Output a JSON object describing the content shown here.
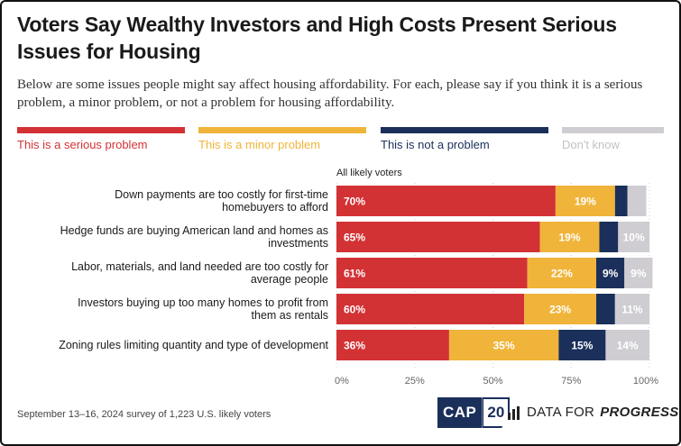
{
  "title": "Voters Say Wealthy Investors and High Costs Present Serious Issues for Housing",
  "subtitle": "Below are some issues people might say affect housing affordability. For each, please say if you think it is a serious problem, a minor problem, or not a problem for housing affordability.",
  "group_label": "All likely voters",
  "footnote": "September 13–16, 2024 survey of 1,223 U.S. likely voters",
  "logos": {
    "cap_text": "CAP",
    "cap_num": "20",
    "dfp_text_plain": "DATA FOR",
    "dfp_text_bold": "PROGRESS"
  },
  "colors": {
    "serious": "#d33235",
    "minor": "#f0b43a",
    "not": "#1b2f5b",
    "dont_know": "#cfcdd2",
    "text_dark": "#1a1a1a",
    "grid": "#cccccc"
  },
  "legend": [
    {
      "label": "This is a serious problem",
      "color": "#d33235",
      "text_color": "#d33235"
    },
    {
      "label": "This is a minor problem",
      "color": "#f0b43a",
      "text_color": "#f0b43a"
    },
    {
      "label": "This is not a problem",
      "color": "#1b2f5b",
      "text_color": "#1b2f5b"
    },
    {
      "label": "Don't know",
      "color": "#cfcdd2",
      "text_color": "#c3c1c6"
    }
  ],
  "chart_data": {
    "type": "bar",
    "orientation": "horizontal",
    "stacked": true,
    "categories": [
      [
        "Down payments are too costly for first-time",
        "homebuyers to afford"
      ],
      [
        "Hedge funds are buying American land and homes as",
        "investments"
      ],
      [
        "Labor, materials, and land needed are too costly for",
        "average people"
      ],
      [
        "Investors buying up too many homes to profit from",
        "them as rentals"
      ],
      [
        "Zoning rules limiting quantity and type of development"
      ]
    ],
    "series": [
      {
        "name": "This is a serious problem",
        "values": [
          70,
          65,
          61,
          60,
          36
        ],
        "labels": [
          "70%",
          "65%",
          "61%",
          "60%",
          "36%"
        ]
      },
      {
        "name": "This is a minor problem",
        "values": [
          19,
          19,
          22,
          23,
          35
        ],
        "labels": [
          "19%",
          "19%",
          "22%",
          "23%",
          "35%"
        ]
      },
      {
        "name": "This is not a problem",
        "values": [
          4,
          6,
          9,
          6,
          15
        ],
        "labels": [
          "",
          "",
          "9%",
          "",
          "15%"
        ]
      },
      {
        "name": "Don't know",
        "values": [
          6,
          10,
          9,
          11,
          14
        ],
        "labels": [
          "",
          "10%",
          "9%",
          "11%",
          "14%"
        ]
      }
    ],
    "xticks": [
      "0%",
      "25%",
      "50%",
      "75%",
      "100%"
    ],
    "xlim": [
      0,
      100
    ],
    "legend_position": "top"
  }
}
